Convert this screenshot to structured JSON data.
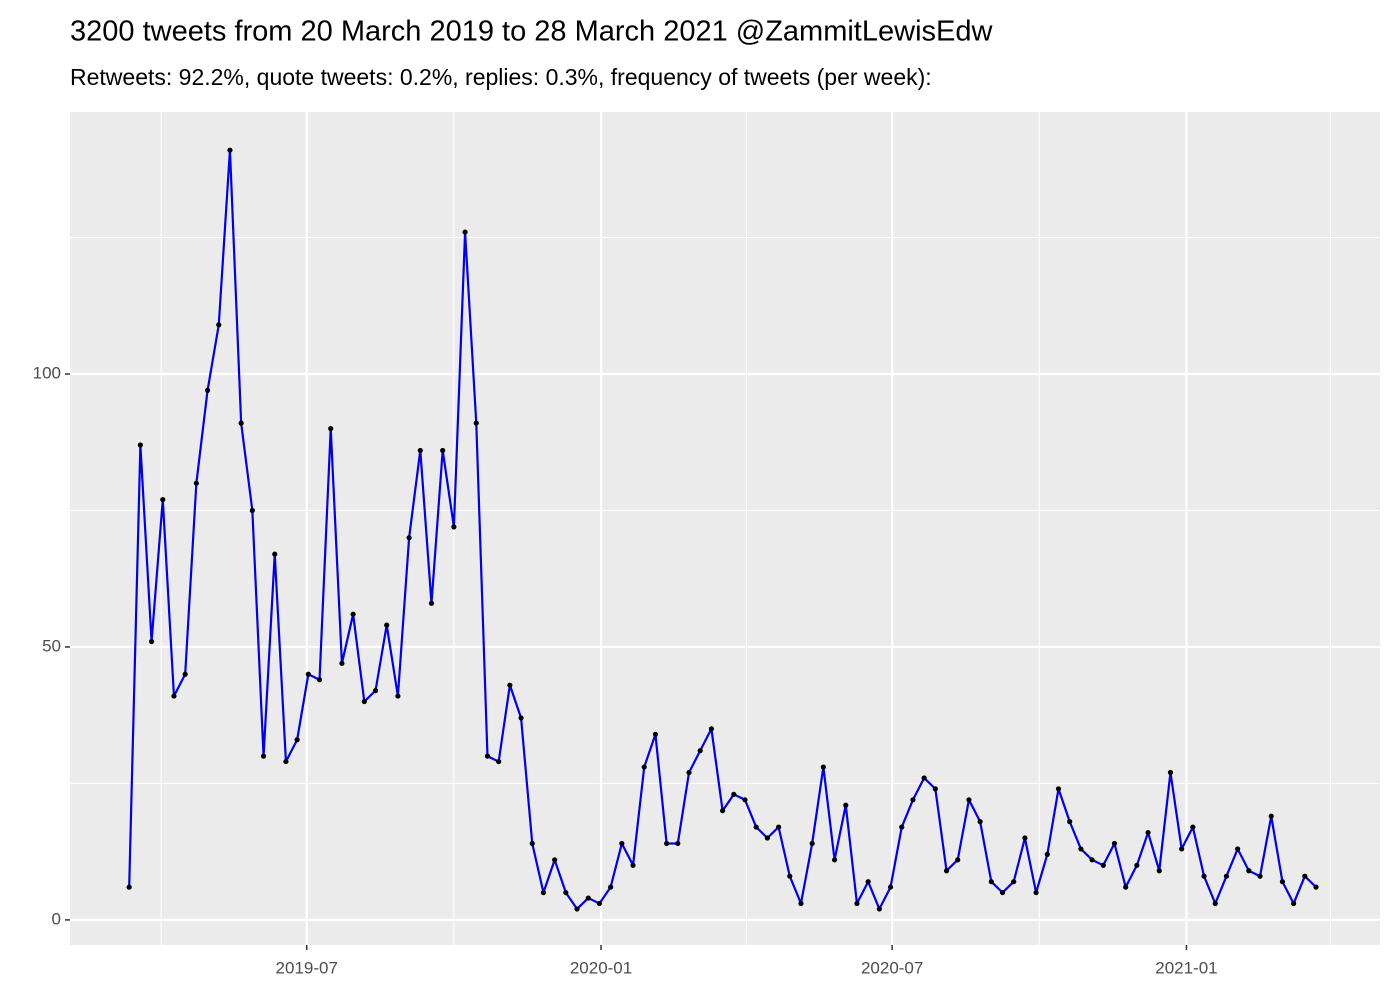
{
  "chart_data": {
    "type": "line",
    "title": "3200 tweets from 20 March 2019 to 28 March 2021 @ZammitLewisEdw",
    "subtitle": "Retweets: 92.2%, quote tweets: 0.2%, replies: 0.3%, frequency of tweets (per week):",
    "x": [
      17967,
      17974,
      17981,
      17988,
      17995,
      18002,
      18009,
      18016,
      18023,
      18030,
      18037,
      18044,
      18051,
      18058,
      18065,
      18072,
      18079,
      18086,
      18093,
      18100,
      18107,
      18114,
      18121,
      18128,
      18135,
      18142,
      18149,
      18156,
      18163,
      18170,
      18177,
      18184,
      18191,
      18198,
      18205,
      18212,
      18219,
      18226,
      18233,
      18240,
      18247,
      18254,
      18261,
      18268,
      18275,
      18282,
      18289,
      18296,
      18303,
      18310,
      18317,
      18324,
      18331,
      18338,
      18345,
      18352,
      18359,
      18366,
      18373,
      18380,
      18387,
      18394,
      18401,
      18408,
      18415,
      18422,
      18429,
      18436,
      18443,
      18450,
      18457,
      18464,
      18471,
      18478,
      18485,
      18492,
      18499,
      18506,
      18513,
      18520,
      18527,
      18534,
      18541,
      18548,
      18555,
      18562,
      18569,
      18576,
      18583,
      18590,
      18597,
      18604,
      18611,
      18618,
      18625,
      18632,
      18639,
      18646,
      18653,
      18660,
      18667,
      18674,
      18681,
      18688,
      18695,
      18702,
      18709
    ],
    "series": [
      {
        "color": "#0000ee",
        "point_color": "#000000",
        "values": [
          6,
          87,
          51,
          77,
          41,
          45,
          80,
          97,
          109,
          141,
          91,
          75,
          30,
          67,
          29,
          33,
          45,
          44,
          90,
          47,
          56,
          40,
          42,
          54,
          41,
          70,
          86,
          58,
          86,
          72,
          126,
          91,
          30,
          29,
          43,
          37,
          14,
          5,
          11,
          5,
          2,
          4,
          3,
          6,
          14,
          10,
          28,
          34,
          14,
          14,
          27,
          31,
          35,
          20,
          23,
          22,
          17,
          15,
          17,
          8,
          3,
          14,
          28,
          11,
          21,
          3,
          7,
          2,
          6,
          17,
          22,
          26,
          24,
          9,
          11,
          22,
          18,
          7,
          5,
          7,
          15,
          5,
          12,
          24,
          18,
          13,
          11,
          10,
          14,
          6,
          10,
          16,
          9,
          27,
          13,
          17,
          8,
          3,
          8,
          13,
          9,
          8,
          19,
          7,
          3,
          8,
          6
        ]
      }
    ],
    "xlim": [
      17930,
      18749
    ],
    "xticks": [
      {
        "value": 18078,
        "label": "2019-07"
      },
      {
        "value": 18262,
        "label": "2020-01"
      },
      {
        "value": 18444,
        "label": "2020-07"
      },
      {
        "value": 18628,
        "label": "2021-01"
      }
    ],
    "minor_xticks": [
      17987,
      18170,
      18353,
      18536,
      18718
    ],
    "ylim": [
      -4.6,
      148
    ],
    "yticks": [
      0,
      50,
      100
    ],
    "minor_yticks": [
      25,
      75,
      125
    ],
    "grid": true
  }
}
